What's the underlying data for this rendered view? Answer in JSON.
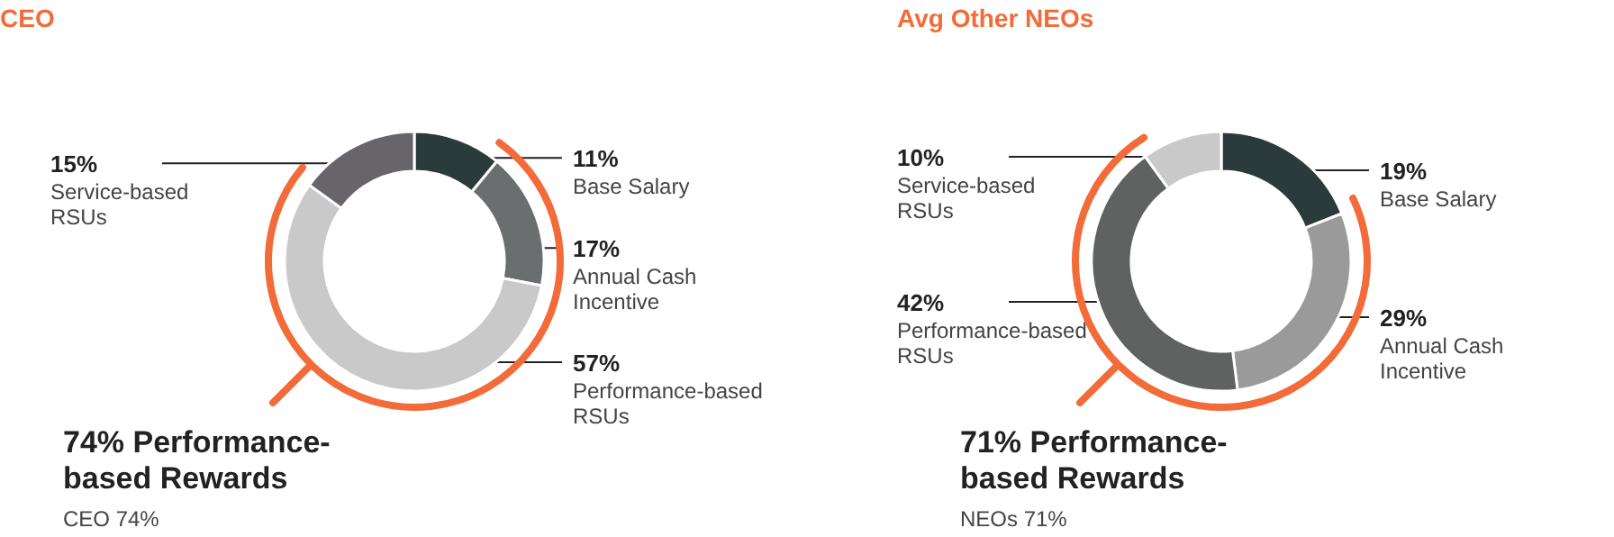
{
  "chart_data": [
    {
      "type": "donut",
      "title": "CEO",
      "categories": [
        "Base Salary",
        "Annual Cash Incentive",
        "Performance-based RSUs",
        "Service-based RSUs"
      ],
      "values": [
        11,
        17,
        57,
        15
      ],
      "value_labels": [
        "11%",
        "17%",
        "57%",
        "15%"
      ],
      "colors": [
        "#2b3a3b",
        "#6b6e6e",
        "#c9c9c9",
        "#67646a"
      ],
      "annotations": [
        "74% Performance-based Rewards",
        "CEO 74%"
      ]
    },
    {
      "type": "donut",
      "title": "Avg Other NEOs",
      "categories": [
        "Base Salary",
        "Annual Cash Incentive",
        "Performance-based RSUs",
        "Service-based RSUs"
      ],
      "values": [
        19,
        29,
        42,
        10
      ],
      "value_labels": [
        "19%",
        "29%",
        "42%",
        "10%"
      ],
      "colors": [
        "#2b3a3b",
        "#9a9a9a",
        "#5f6261",
        "#c9c9c9"
      ],
      "annotations": [
        "71% Performance-based Rewards",
        "NEOs 71%"
      ]
    }
  ]
}
